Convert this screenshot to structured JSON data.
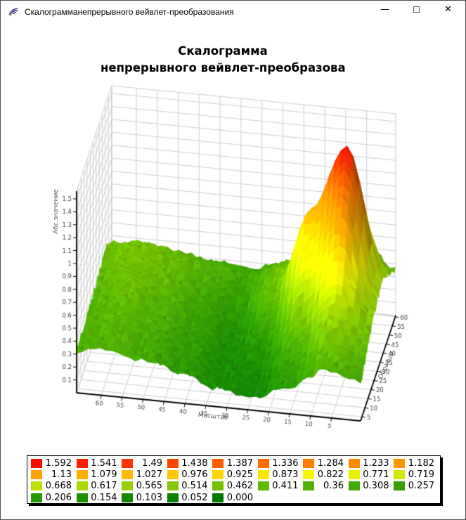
{
  "window": {
    "title": "Скалограмманепрерывного вейвлет-преобразования",
    "minimize_glyph": "—",
    "maximize_glyph": "☐",
    "close_glyph": "✕"
  },
  "chart": {
    "title_line1": "Скалограмма",
    "title_line2": "непрерывного вейвлет-преобразования",
    "axes": {
      "height": {
        "label": "Абс.значение",
        "ticks": [
          "0.1",
          "0.2",
          "0.3",
          "0.4",
          "0.5",
          "0.6",
          "0.7",
          "0.8",
          "0.9",
          "1",
          "1.1",
          "1.2",
          "1.3",
          "1.4",
          "1.5"
        ]
      },
      "scale": {
        "label": "Масштаб",
        "ticks": [
          60,
          55,
          50,
          45,
          40,
          35,
          30,
          25,
          20,
          15,
          10,
          5
        ]
      },
      "samples": {
        "label": "Образцы",
        "ticks": [
          5,
          10,
          15,
          20,
          25,
          30,
          35,
          40,
          45,
          50,
          55,
          60
        ]
      }
    }
  },
  "legend": {
    "entries": [
      {
        "value": "1.592",
        "color": "#ff0a00"
      },
      {
        "value": "1.541",
        "color": "#ff1e00"
      },
      {
        "value": "1.49",
        "color": "#ff3200"
      },
      {
        "value": "1.438",
        "color": "#ff4600"
      },
      {
        "value": "1.387",
        "color": "#ff5a00"
      },
      {
        "value": "1.336",
        "color": "#ff6c00"
      },
      {
        "value": "1.284",
        "color": "#ff7c00"
      },
      {
        "value": "1.233",
        "color": "#ff8a00"
      },
      {
        "value": "1.182",
        "color": "#ff9600"
      },
      {
        "value": "1.13",
        "color": "#ffa200"
      },
      {
        "value": "1.079",
        "color": "#ffae00"
      },
      {
        "value": "1.027",
        "color": "#ffba00"
      },
      {
        "value": "0.976",
        "color": "#ffc800"
      },
      {
        "value": "0.925",
        "color": "#ffd600"
      },
      {
        "value": "0.873",
        "color": "#ffe600"
      },
      {
        "value": "0.822",
        "color": "#faf600"
      },
      {
        "value": "0.771",
        "color": "#e8f000"
      },
      {
        "value": "0.719",
        "color": "#d2e800"
      },
      {
        "value": "0.668",
        "color": "#bee000"
      },
      {
        "value": "0.617",
        "color": "#aad800"
      },
      {
        "value": "0.565",
        "color": "#97d000"
      },
      {
        "value": "0.514",
        "color": "#85c800"
      },
      {
        "value": "0.462",
        "color": "#73c000"
      },
      {
        "value": "0.411",
        "color": "#62b800"
      },
      {
        "value": "0.36",
        "color": "#52b000"
      },
      {
        "value": "0.308",
        "color": "#43a800"
      },
      {
        "value": "0.257",
        "color": "#35a000"
      },
      {
        "value": "0.206",
        "color": "#289800"
      },
      {
        "value": "0.154",
        "color": "#1c9000"
      },
      {
        "value": "0.103",
        "color": "#128800"
      },
      {
        "value": "0.052",
        "color": "#088000"
      },
      {
        "value": "0.000",
        "color": "#007800"
      }
    ]
  },
  "chart_data": {
    "type": "surface",
    "title": "Скалограмма непрерывного вейвлет-преобразования",
    "xlabel": "Масштаб",
    "depth_label": "Образцы",
    "zlabel": "Абс.значение",
    "x_range": [
      5,
      60
    ],
    "depth_range": [
      5,
      60
    ],
    "z_range": [
      0,
      1.592
    ],
    "peak": {
      "scale": 10,
      "sample": 40,
      "value": 1.592
    },
    "grid": {
      "scale_points": [
        62,
        54.5,
        47,
        39.5,
        32,
        24.5,
        17,
        9.5,
        2
      ],
      "sample_points": [
        3,
        10.4,
        17.8,
        25.2,
        32.5,
        39.9,
        47.3,
        54.6,
        62
      ],
      "values": [
        [
          0.33,
          0.35,
          0.3,
          0.22,
          0.14,
          0.1,
          0.22,
          0.36,
          0.3
        ],
        [
          0.34,
          0.36,
          0.31,
          0.22,
          0.13,
          0.11,
          0.26,
          0.42,
          0.36
        ],
        [
          0.35,
          0.38,
          0.33,
          0.23,
          0.13,
          0.14,
          0.35,
          0.55,
          0.44
        ],
        [
          0.36,
          0.4,
          0.35,
          0.25,
          0.14,
          0.2,
          0.52,
          0.85,
          0.5
        ],
        [
          0.38,
          0.42,
          0.37,
          0.27,
          0.16,
          0.3,
          0.82,
          1.28,
          0.55
        ],
        [
          0.4,
          0.44,
          0.39,
          0.3,
          0.2,
          0.42,
          1.08,
          1.592,
          0.58
        ],
        [
          0.42,
          0.46,
          0.41,
          0.33,
          0.26,
          0.45,
          0.92,
          1.22,
          0.52
        ],
        [
          0.44,
          0.47,
          0.42,
          0.36,
          0.3,
          0.42,
          0.66,
          0.8,
          0.44
        ],
        [
          0.3,
          0.33,
          0.3,
          0.28,
          0.26,
          0.32,
          0.45,
          0.55,
          0.36
        ]
      ]
    },
    "legend_position": "bottom",
    "grid_walls": true
  }
}
